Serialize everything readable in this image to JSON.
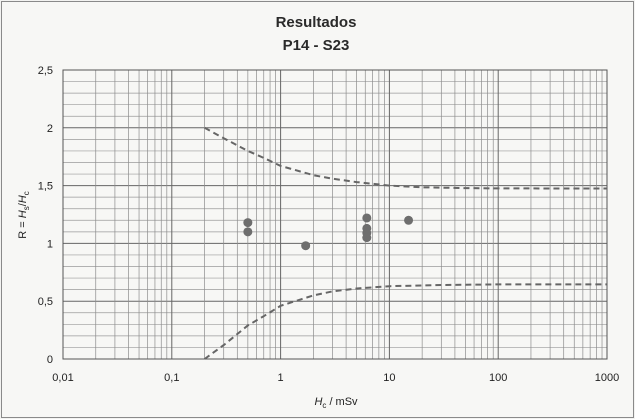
{
  "chart_data": {
    "type": "scatter",
    "title": "Resultados",
    "subtitle": "P14 - S23",
    "xlabel": "H_c / mSv",
    "ylabel": "R = H_s/H_c",
    "x_scale": "log",
    "xlim": [
      0.01,
      1000
    ],
    "ylim": [
      0,
      2.5
    ],
    "x_tick_labels": [
      "0,01",
      "0,1",
      "1",
      "10",
      "100",
      "1000"
    ],
    "y_tick_labels": [
      "0",
      "0,5",
      "1",
      "1,5",
      "2",
      "2,5"
    ],
    "grid": true,
    "legend": "none",
    "series": [
      {
        "kind": "points",
        "color": "#6e6e6e",
        "points": [
          {
            "x": 0.5,
            "y": 1.18
          },
          {
            "x": 0.5,
            "y": 1.1
          },
          {
            "x": 1.7,
            "y": 0.98
          },
          {
            "x": 6.2,
            "y": 1.22
          },
          {
            "x": 6.2,
            "y": 1.13
          },
          {
            "x": 6.2,
            "y": 1.09
          },
          {
            "x": 6.2,
            "y": 1.05
          },
          {
            "x": 15,
            "y": 1.2
          }
        ]
      },
      {
        "kind": "upper-limit",
        "style": "dashed",
        "color": "#666666",
        "points": [
          {
            "x": 0.2,
            "y": 2.0
          },
          {
            "x": 0.3,
            "y": 1.91
          },
          {
            "x": 0.5,
            "y": 1.8
          },
          {
            "x": 0.7,
            "y": 1.74
          },
          {
            "x": 1,
            "y": 1.67
          },
          {
            "x": 2,
            "y": 1.59
          },
          {
            "x": 3,
            "y": 1.56
          },
          {
            "x": 5,
            "y": 1.53
          },
          {
            "x": 10,
            "y": 1.5
          },
          {
            "x": 20,
            "y": 1.485
          },
          {
            "x": 50,
            "y": 1.478
          },
          {
            "x": 100,
            "y": 1.476
          },
          {
            "x": 1000,
            "y": 1.475
          }
        ]
      },
      {
        "kind": "lower-limit",
        "style": "dashed",
        "color": "#666666",
        "points": [
          {
            "x": 0.2,
            "y": 0.0
          },
          {
            "x": 0.3,
            "y": 0.12
          },
          {
            "x": 0.5,
            "y": 0.29
          },
          {
            "x": 0.7,
            "y": 0.37
          },
          {
            "x": 1,
            "y": 0.46
          },
          {
            "x": 2,
            "y": 0.55
          },
          {
            "x": 3,
            "y": 0.585
          },
          {
            "x": 5,
            "y": 0.61
          },
          {
            "x": 10,
            "y": 0.63
          },
          {
            "x": 30,
            "y": 0.64
          },
          {
            "x": 100,
            "y": 0.645
          },
          {
            "x": 1000,
            "y": 0.645
          }
        ]
      }
    ]
  }
}
